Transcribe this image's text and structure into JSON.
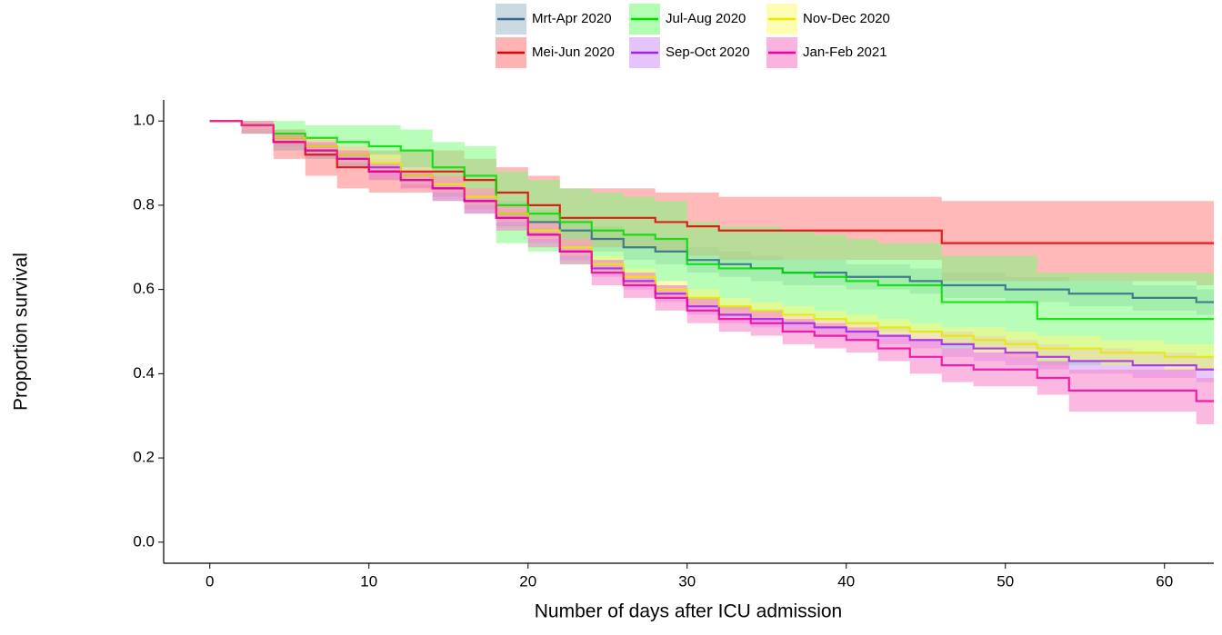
{
  "chart_data": {
    "type": "survival",
    "x_label": "Number of days after ICU admission",
    "y_label": "Proportion survival",
    "xlim": [
      -2.9,
      63.1
    ],
    "xticks": [
      0,
      10,
      20,
      30,
      40,
      50,
      60
    ],
    "ylim": [
      -0.05,
      1.05
    ],
    "yticks": [
      {
        "value": 0,
        "label": "0.0"
      },
      {
        "value": 0.2,
        "label": "0.2"
      },
      {
        "value": 0.4,
        "label": "0.4"
      },
      {
        "value": 0.6,
        "label": "0.6"
      },
      {
        "value": 0.8,
        "label": "0.8"
      },
      {
        "value": 1,
        "label": "1.0"
      }
    ],
    "x": [
      0,
      2,
      4,
      6,
      8,
      10,
      12,
      14,
      16,
      18,
      20,
      22,
      24,
      26,
      28,
      30,
      32,
      34,
      36,
      38,
      40,
      42,
      44,
      46,
      48,
      50,
      52,
      54,
      56,
      58,
      60,
      62
    ],
    "series": [
      {
        "name": "Mrt-Apr 2020",
        "color": "#2f6a8a",
        "band_color": "#a9bfd1",
        "values": [
          1,
          0.99,
          0.96,
          0.93,
          0.91,
          0.88,
          0.86,
          0.84,
          0.81,
          0.78,
          0.76,
          0.74,
          0.72,
          0.7,
          0.69,
          0.67,
          0.66,
          0.65,
          0.64,
          0.64,
          0.63,
          0.63,
          0.62,
          0.61,
          0.61,
          0.6,
          0.6,
          0.59,
          0.59,
          0.58,
          0.58,
          0.57
        ],
        "lower": [
          1,
          0.98,
          0.94,
          0.91,
          0.89,
          0.86,
          0.84,
          0.81,
          0.78,
          0.75,
          0.73,
          0.71,
          0.69,
          0.67,
          0.66,
          0.64,
          0.63,
          0.62,
          0.61,
          0.61,
          0.6,
          0.6,
          0.59,
          0.58,
          0.58,
          0.57,
          0.57,
          0.56,
          0.56,
          0.55,
          0.55,
          0.54
        ],
        "upper": [
          1,
          1,
          0.98,
          0.95,
          0.93,
          0.9,
          0.88,
          0.87,
          0.84,
          0.81,
          0.79,
          0.77,
          0.75,
          0.73,
          0.72,
          0.7,
          0.69,
          0.68,
          0.67,
          0.67,
          0.66,
          0.66,
          0.65,
          0.64,
          0.64,
          0.63,
          0.63,
          0.62,
          0.62,
          0.61,
          0.61,
          0.6
        ]
      },
      {
        "name": "Mei-Jun 2020",
        "color": "#e00000",
        "band_color": "#ff8080",
        "values": [
          1,
          0.99,
          0.95,
          0.92,
          0.89,
          0.88,
          0.88,
          0.88,
          0.86,
          0.83,
          0.8,
          0.77,
          0.77,
          0.77,
          0.76,
          0.75,
          0.74,
          0.74,
          0.74,
          0.74,
          0.74,
          0.74,
          0.74,
          0.71,
          0.71,
          0.71,
          0.71,
          0.71,
          0.71,
          0.71,
          0.71,
          0.71
        ],
        "lower": [
          1,
          0.97,
          0.91,
          0.87,
          0.84,
          0.83,
          0.83,
          0.83,
          0.8,
          0.77,
          0.73,
          0.7,
          0.7,
          0.7,
          0.69,
          0.68,
          0.67,
          0.67,
          0.67,
          0.67,
          0.67,
          0.67,
          0.67,
          0.62,
          0.62,
          0.62,
          0.62,
          0.62,
          0.62,
          0.62,
          0.62,
          0.61
        ],
        "upper": [
          1,
          1,
          0.98,
          0.96,
          0.94,
          0.93,
          0.93,
          0.93,
          0.91,
          0.89,
          0.87,
          0.84,
          0.84,
          0.84,
          0.83,
          0.83,
          0.82,
          0.82,
          0.82,
          0.82,
          0.82,
          0.82,
          0.82,
          0.81,
          0.81,
          0.81,
          0.81,
          0.81,
          0.81,
          0.81,
          0.81,
          0.81
        ]
      },
      {
        "name": "Jul-Aug 2020",
        "color": "#00dd00",
        "band_color": "#7dfc7d",
        "values": [
          1,
          0.99,
          0.97,
          0.96,
          0.95,
          0.94,
          0.93,
          0.89,
          0.87,
          0.8,
          0.78,
          0.76,
          0.74,
          0.73,
          0.72,
          0.66,
          0.65,
          0.65,
          0.64,
          0.63,
          0.62,
          0.61,
          0.61,
          0.57,
          0.57,
          0.57,
          0.53,
          0.53,
          0.53,
          0.53,
          0.53,
          0.53
        ],
        "lower": [
          1,
          0.97,
          0.93,
          0.91,
          0.89,
          0.88,
          0.87,
          0.82,
          0.79,
          0.71,
          0.69,
          0.66,
          0.64,
          0.63,
          0.62,
          0.56,
          0.55,
          0.55,
          0.54,
          0.53,
          0.52,
          0.5,
          0.5,
          0.46,
          0.46,
          0.46,
          0.42,
          0.42,
          0.42,
          0.42,
          0.42,
          0.41
        ],
        "upper": [
          1,
          1,
          1,
          0.99,
          0.99,
          0.99,
          0.98,
          0.95,
          0.94,
          0.88,
          0.86,
          0.84,
          0.83,
          0.82,
          0.81,
          0.76,
          0.75,
          0.75,
          0.74,
          0.73,
          0.72,
          0.71,
          0.71,
          0.68,
          0.68,
          0.68,
          0.64,
          0.64,
          0.64,
          0.64,
          0.64,
          0.64
        ]
      },
      {
        "name": "Sep-Oct 2020",
        "color": "#a020f0",
        "band_color": "#d39cf7",
        "values": [
          1,
          0.99,
          0.96,
          0.94,
          0.92,
          0.89,
          0.87,
          0.84,
          0.81,
          0.77,
          0.73,
          0.69,
          0.65,
          0.62,
          0.59,
          0.56,
          0.54,
          0.53,
          0.52,
          0.51,
          0.5,
          0.49,
          0.48,
          0.47,
          0.46,
          0.45,
          0.44,
          0.43,
          0.43,
          0.42,
          0.42,
          0.41
        ],
        "lower": [
          1,
          0.98,
          0.95,
          0.92,
          0.9,
          0.87,
          0.85,
          0.82,
          0.79,
          0.75,
          0.71,
          0.67,
          0.63,
          0.6,
          0.57,
          0.54,
          0.52,
          0.51,
          0.5,
          0.49,
          0.48,
          0.47,
          0.46,
          0.44,
          0.43,
          0.42,
          0.41,
          0.4,
          0.4,
          0.39,
          0.39,
          0.38
        ],
        "upper": [
          1,
          1,
          0.97,
          0.96,
          0.94,
          0.91,
          0.89,
          0.86,
          0.83,
          0.79,
          0.75,
          0.71,
          0.67,
          0.64,
          0.61,
          0.58,
          0.56,
          0.55,
          0.54,
          0.53,
          0.52,
          0.51,
          0.5,
          0.5,
          0.49,
          0.48,
          0.47,
          0.46,
          0.46,
          0.45,
          0.45,
          0.44
        ]
      },
      {
        "name": "Nov-Dec 2020",
        "color": "#e8e800",
        "band_color": "#fbfb80",
        "values": [
          1,
          0.99,
          0.96,
          0.94,
          0.92,
          0.9,
          0.87,
          0.85,
          0.82,
          0.78,
          0.74,
          0.7,
          0.66,
          0.63,
          0.6,
          0.58,
          0.56,
          0.55,
          0.54,
          0.53,
          0.52,
          0.51,
          0.5,
          0.49,
          0.48,
          0.47,
          0.46,
          0.46,
          0.45,
          0.45,
          0.44,
          0.44
        ],
        "lower": [
          1,
          0.98,
          0.95,
          0.92,
          0.9,
          0.88,
          0.85,
          0.83,
          0.8,
          0.76,
          0.72,
          0.68,
          0.64,
          0.61,
          0.58,
          0.56,
          0.54,
          0.53,
          0.52,
          0.51,
          0.5,
          0.49,
          0.48,
          0.47,
          0.45,
          0.44,
          0.43,
          0.43,
          0.42,
          0.42,
          0.41,
          0.41
        ],
        "upper": [
          1,
          1,
          0.97,
          0.96,
          0.94,
          0.92,
          0.89,
          0.87,
          0.84,
          0.8,
          0.76,
          0.72,
          0.68,
          0.65,
          0.62,
          0.6,
          0.58,
          0.57,
          0.56,
          0.55,
          0.54,
          0.53,
          0.52,
          0.51,
          0.51,
          0.5,
          0.49,
          0.49,
          0.48,
          0.48,
          0.47,
          0.47
        ]
      },
      {
        "name": "Jan-Feb 2021",
        "color": "#f000a0",
        "band_color": "#f780c8",
        "values": [
          1,
          0.99,
          0.95,
          0.93,
          0.91,
          0.88,
          0.86,
          0.84,
          0.81,
          0.77,
          0.73,
          0.69,
          0.64,
          0.61,
          0.58,
          0.55,
          0.53,
          0.52,
          0.5,
          0.49,
          0.48,
          0.46,
          0.44,
          0.42,
          0.41,
          0.41,
          0.39,
          0.36,
          0.36,
          0.36,
          0.36,
          0.335
        ],
        "lower": [
          1,
          0.97,
          0.93,
          0.91,
          0.89,
          0.86,
          0.84,
          0.81,
          0.78,
          0.74,
          0.7,
          0.66,
          0.61,
          0.58,
          0.55,
          0.52,
          0.5,
          0.49,
          0.47,
          0.46,
          0.45,
          0.43,
          0.4,
          0.38,
          0.37,
          0.37,
          0.35,
          0.31,
          0.31,
          0.31,
          0.31,
          0.28
        ],
        "upper": [
          1,
          1,
          0.97,
          0.95,
          0.93,
          0.9,
          0.88,
          0.87,
          0.84,
          0.8,
          0.76,
          0.72,
          0.67,
          0.64,
          0.61,
          0.58,
          0.56,
          0.55,
          0.53,
          0.52,
          0.51,
          0.49,
          0.48,
          0.46,
          0.45,
          0.45,
          0.43,
          0.41,
          0.41,
          0.41,
          0.41,
          0.39
        ]
      }
    ]
  }
}
